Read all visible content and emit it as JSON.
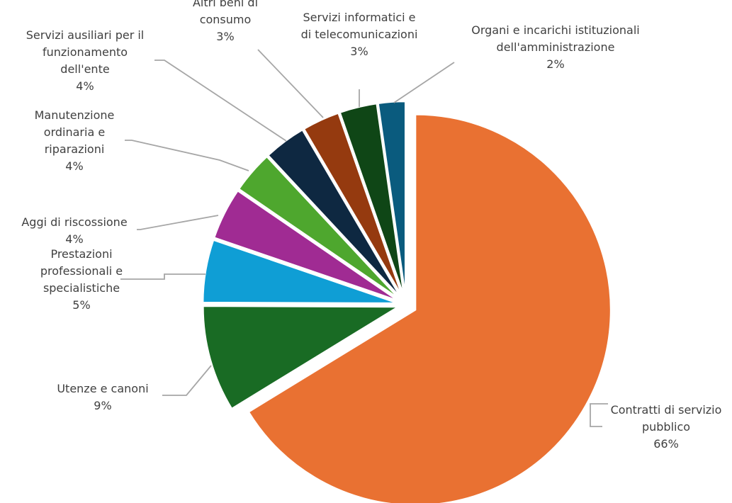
{
  "chart_data": {
    "type": "pie",
    "title": "",
    "slices": [
      {
        "label": [
          "Contratti di servizio",
          "pubblico"
        ],
        "value_label": "66%",
        "value": 66.26,
        "color": "#E97132"
      },
      {
        "label": [
          "Utenze e canoni"
        ],
        "value_label": "9%",
        "value": 8.8,
        "color": "#196B24"
      },
      {
        "label": [
          "Prestazioni",
          "professionali e",
          "specialistiche"
        ],
        "value_label": "5%",
        "value": 5.2,
        "color": "#0F9ED5"
      },
      {
        "label": [
          "Aggi di riscossione"
        ],
        "value_label": "4%",
        "value": 4.3,
        "color": "#A02B93"
      },
      {
        "label": [
          "Manutenzione",
          "ordinaria e",
          "riparazioni"
        ],
        "value_label": "4%",
        "value": 3.5,
        "color": "#4EA72E"
      },
      {
        "label": [
          "Servizi ausiliari per il",
          "funzionamento",
          "dell'ente"
        ],
        "value_label": "4%",
        "value": 3.5,
        "color": "#0E2841"
      },
      {
        "label": [
          "Altri beni di",
          "consumo"
        ],
        "value_label": "3%",
        "value": 3.1,
        "color": "#953A0F"
      },
      {
        "label": [
          "Servizi informatici e",
          "di telecomunicazioni"
        ],
        "value_label": "3%",
        "value": 3.1,
        "color": "#0F4616"
      },
      {
        "label": [
          "Organi e incarichi istituzionali",
          "dell'amministrazione"
        ],
        "value_label": "2%",
        "value": 2.24,
        "color": "#0A5B7E"
      }
    ]
  }
}
